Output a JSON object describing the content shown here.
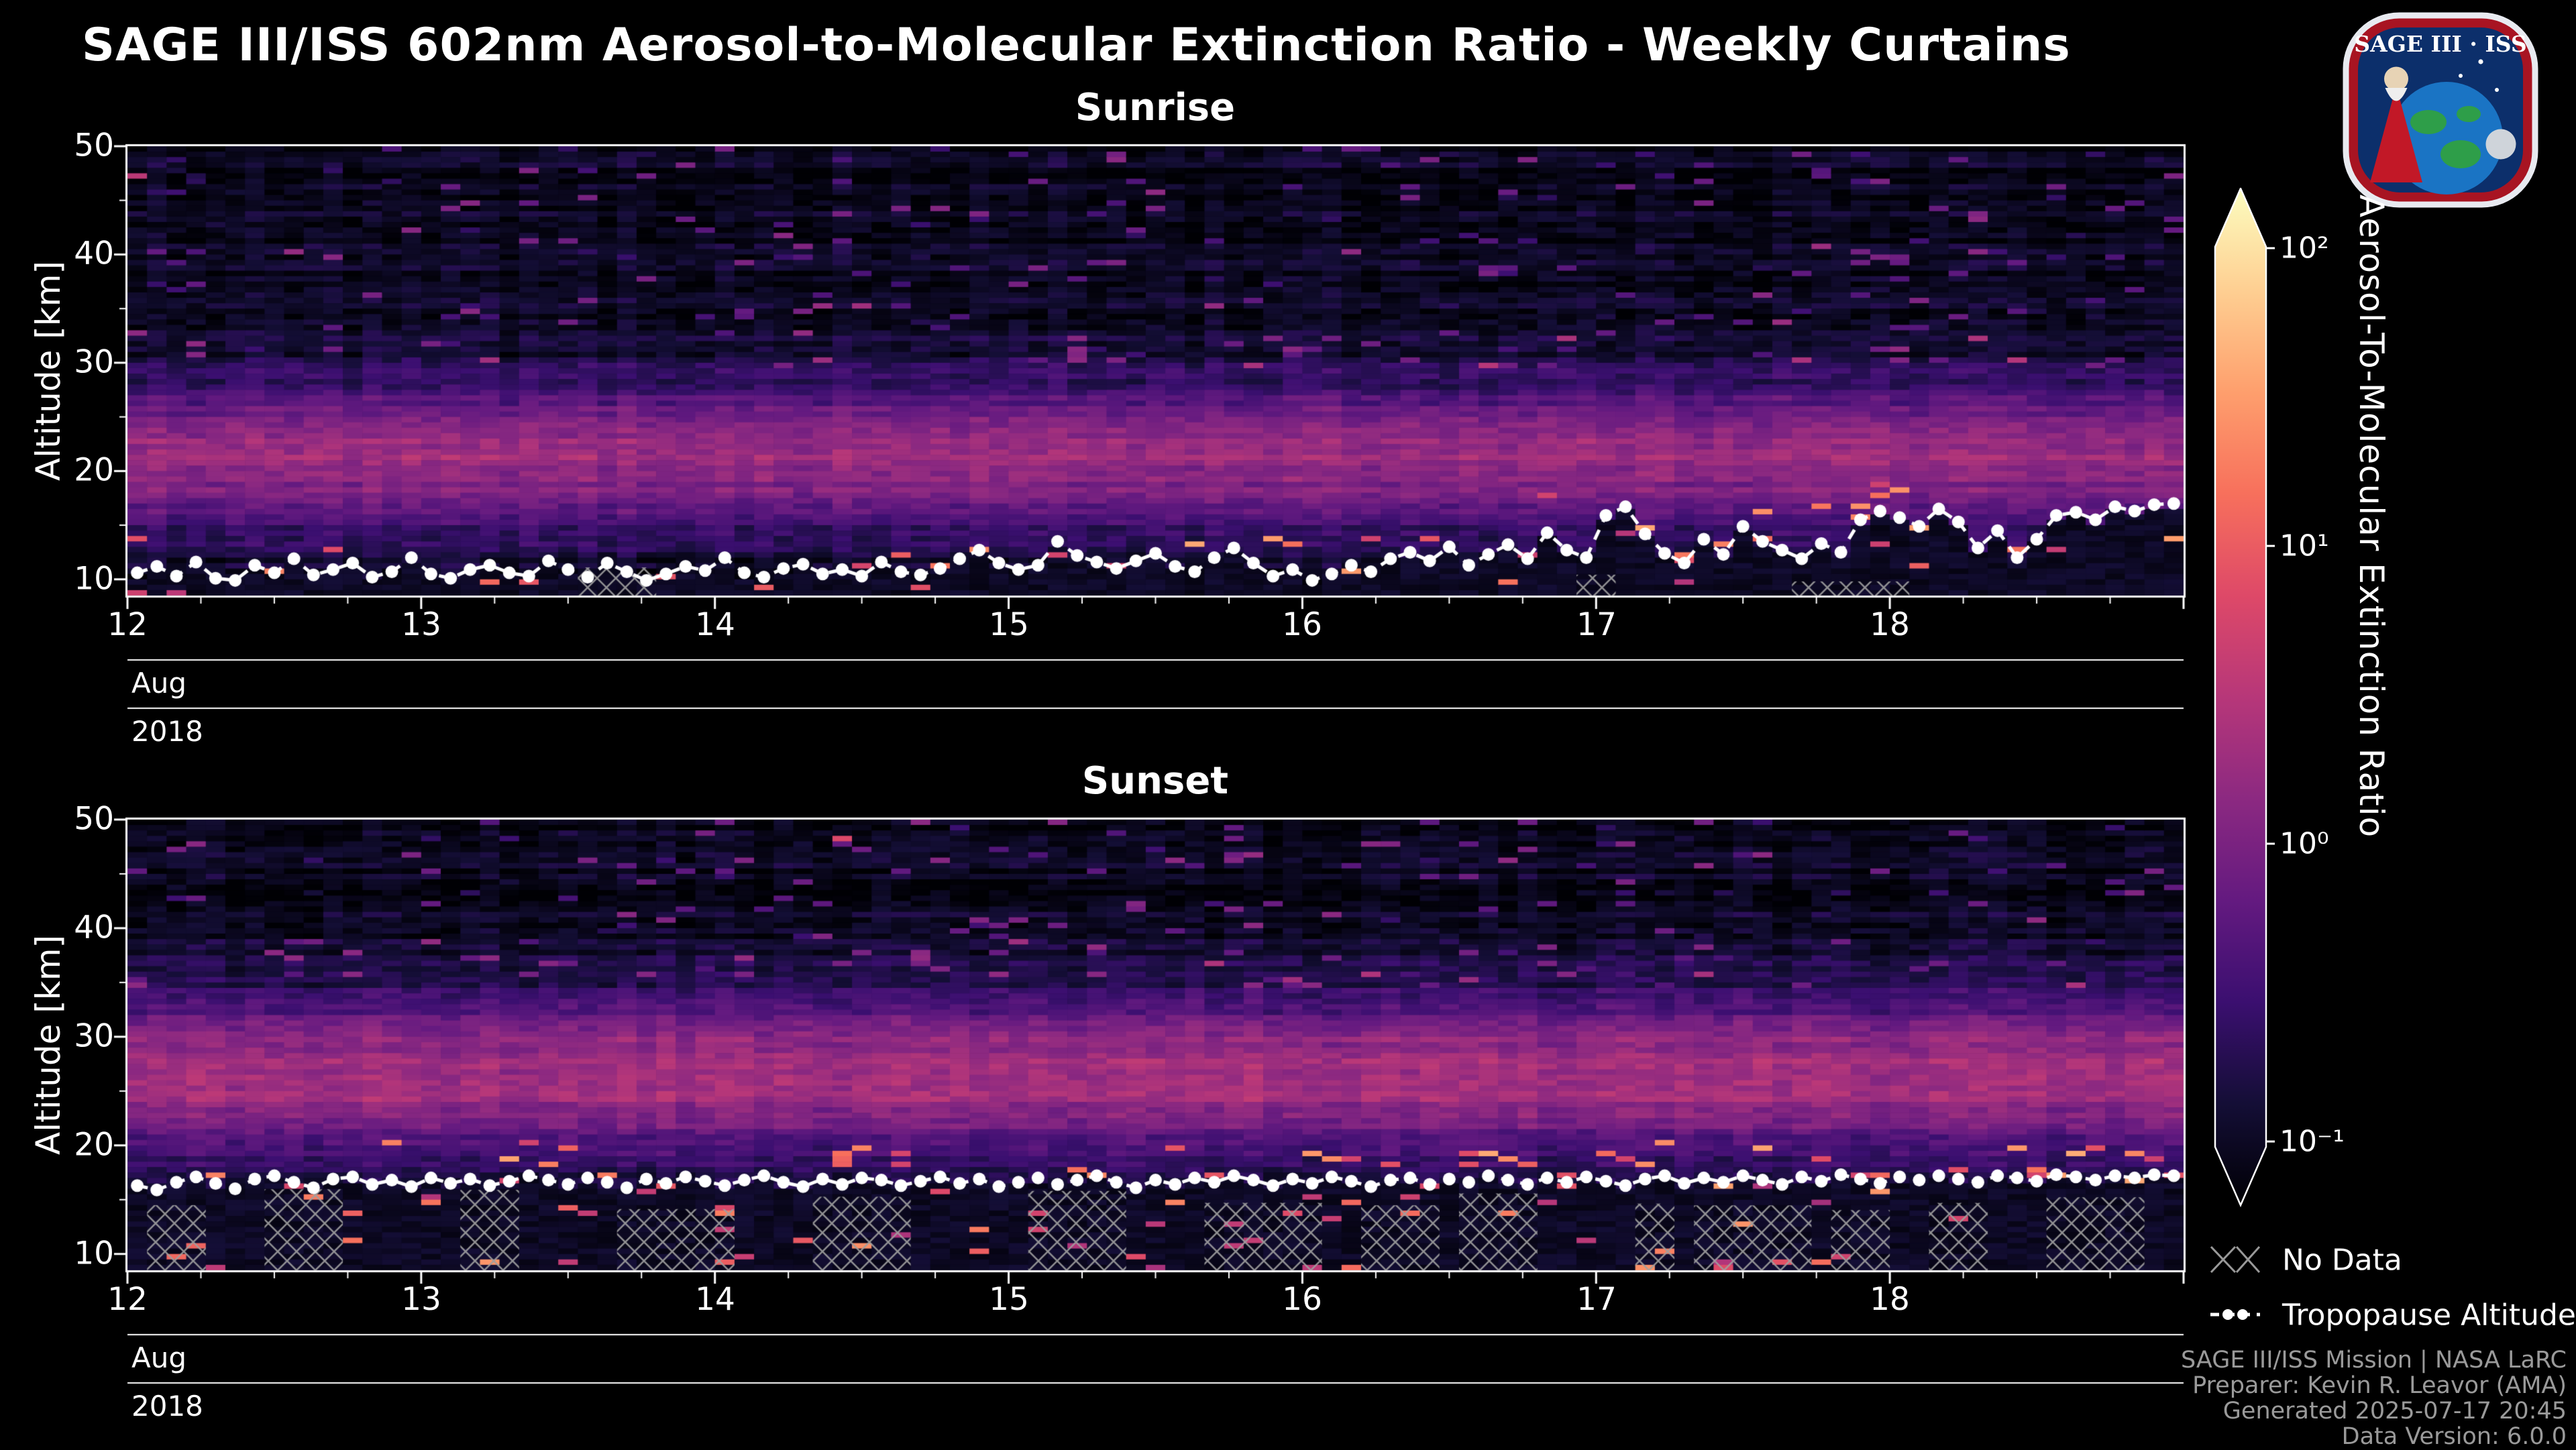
{
  "title": "SAGE III/ISS 602nm Aerosol-to-Molecular Extinction Ratio - Weekly Curtains",
  "logo": {
    "text": "SAGE III · ISS"
  },
  "axes": {
    "ylabel": "Altitude [km]",
    "yticks": [
      "50",
      "40",
      "30",
      "20",
      "10"
    ],
    "xticks": [
      "12",
      "13",
      "14",
      "15",
      "16",
      "17",
      "18"
    ],
    "month": "Aug",
    "year": "2018"
  },
  "colorbar": {
    "label": "Aerosol-To-Molecular Extinction Ratio",
    "ticks": [
      "10²",
      "10¹",
      "10⁰",
      "10⁻¹"
    ],
    "tick_values": [
      100,
      10,
      1,
      0.1
    ],
    "scale": "log",
    "range": [
      0.1,
      100
    ],
    "colormap": "magma"
  },
  "legend": {
    "no_data": "No Data",
    "tropopause": "Tropopause Altitude"
  },
  "footer": [
    "SAGE III/ISS Mission | NASA LaRC",
    "Preparer: Kevin R. Leavor (AMA)",
    "Generated 2025-07-17 20:45",
    "Data Version: 6.0.0"
  ],
  "chart_data": [
    {
      "type": "heatmap",
      "title": "Sunrise",
      "x_range": [
        "2018-08-12",
        "2018-08-19"
      ],
      "x_ticks": [
        12,
        13,
        14,
        15,
        16,
        17,
        18
      ],
      "x_tick_label_month": "Aug",
      "x_tick_label_year": "2018",
      "y_range": [
        8.5,
        50
      ],
      "y_ticks": [
        10,
        20,
        30,
        40,
        50
      ],
      "ylabel": "Altitude [km]",
      "value_label": "Aerosol-To-Molecular Extinction Ratio",
      "value_scale": "log",
      "value_range": [
        0.1,
        100
      ],
      "colormap": "magma",
      "band": {
        "center_km": 21.5,
        "sigma_km": 4.8,
        "peak_norm": 0.38
      },
      "hot_spot_band_above_tropopause_km": 3.5,
      "no_data_hatch": {
        "probability": 0.1,
        "top_km": 9.5,
        "top_var_km": 1.6
      },
      "low_bright_prob": 0.012,
      "tropopause_km": [
        10.6,
        11.2,
        10.3,
        11.6,
        10.1,
        9.9,
        11.3,
        10.6,
        11.9,
        10.4,
        10.9,
        11.5,
        10.2,
        10.7,
        12.0,
        10.5,
        10.1,
        10.9,
        11.3,
        10.6,
        10.3,
        11.7,
        10.9,
        10.2,
        11.5,
        10.7,
        9.9,
        10.5,
        11.2,
        10.8,
        12.0,
        10.6,
        10.2,
        11.0,
        11.4,
        10.5,
        10.9,
        10.3,
        11.6,
        10.7,
        10.4,
        11.0,
        11.9,
        12.7,
        11.5,
        10.9,
        11.3,
        13.5,
        12.2,
        11.6,
        11.0,
        11.7,
        12.4,
        11.2,
        10.7,
        12.0,
        12.9,
        11.5,
        10.3,
        10.9,
        9.9,
        10.5,
        11.3,
        10.7,
        11.9,
        12.5,
        11.7,
        13.0,
        11.3,
        12.3,
        13.2,
        11.9,
        14.3,
        12.7,
        12.0,
        15.9,
        16.7,
        14.2,
        12.4,
        11.5,
        13.7,
        12.3,
        14.9,
        13.5,
        12.7,
        11.9,
        13.3,
        12.5,
        15.5,
        16.3,
        15.7,
        14.9,
        16.5,
        15.3,
        12.9,
        14.5,
        12.0,
        13.7,
        15.9,
        16.2,
        15.5,
        16.7,
        16.3,
        16.9,
        17.0
      ]
    },
    {
      "type": "heatmap",
      "title": "Sunset",
      "x_range": [
        "2018-08-12",
        "2018-08-19"
      ],
      "x_ticks": [
        12,
        13,
        14,
        15,
        16,
        17,
        18
      ],
      "x_tick_label_month": "Aug",
      "x_tick_label_year": "2018",
      "y_range": [
        8.5,
        50
      ],
      "y_ticks": [
        10,
        20,
        30,
        40,
        50
      ],
      "ylabel": "Altitude [km]",
      "value_label": "Aerosol-To-Molecular Extinction Ratio",
      "value_scale": "log",
      "value_range": [
        0.1,
        100
      ],
      "colormap": "magma",
      "band": {
        "center_km": 26.5,
        "sigma_km": 5.2,
        "peak_norm": 0.4
      },
      "hot_spot_band_above_tropopause_km": 3.5,
      "no_data_hatch": {
        "probability": 0.5,
        "top_km": 14.0,
        "top_var_km": 2.4
      },
      "low_bright_prob": 0.035,
      "tropopause_km": [
        16.3,
        15.9,
        16.6,
        17.1,
        16.5,
        16.0,
        16.9,
        17.2,
        16.6,
        16.1,
        16.9,
        17.1,
        16.4,
        16.8,
        16.2,
        17.0,
        16.5,
        16.9,
        16.3,
        16.7,
        17.2,
        16.8,
        16.4,
        17.0,
        16.6,
        16.1,
        16.9,
        16.5,
        17.1,
        16.7,
        16.3,
        16.8,
        17.2,
        16.6,
        16.2,
        16.9,
        16.4,
        17.0,
        16.8,
        16.3,
        16.7,
        17.1,
        16.5,
        16.9,
        16.2,
        16.6,
        17.0,
        16.4,
        16.8,
        17.2,
        16.6,
        16.1,
        16.8,
        16.4,
        17.0,
        16.6,
        17.2,
        16.8,
        16.3,
        16.9,
        16.5,
        17.1,
        16.7,
        16.2,
        16.8,
        17.0,
        16.4,
        16.9,
        16.6,
        17.2,
        16.8,
        16.4,
        17.0,
        16.6,
        17.1,
        16.7,
        16.3,
        16.9,
        17.2,
        16.5,
        17.0,
        16.6,
        17.2,
        16.8,
        16.4,
        17.1,
        16.7,
        17.3,
        16.9,
        16.5,
        17.1,
        16.8,
        17.2,
        16.9,
        16.6,
        17.2,
        17.0,
        16.7,
        17.3,
        17.1,
        16.8,
        17.2,
        17.0,
        17.3,
        17.2
      ]
    }
  ]
}
